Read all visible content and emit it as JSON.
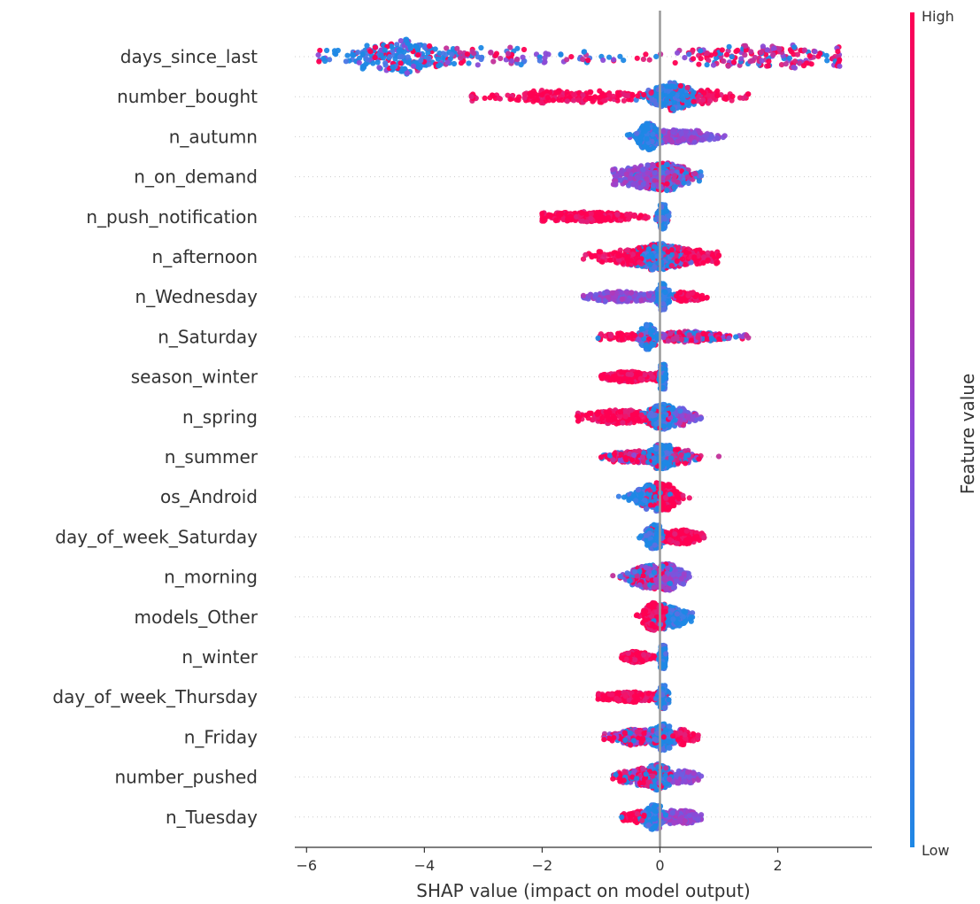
{
  "chart_data": {
    "type": "scatter",
    "subtype": "shap-beeswarm",
    "title": "",
    "xlabel": "SHAP value (impact on model output)",
    "ylabel": "",
    "xlim": [
      -6.2,
      3.6
    ],
    "xticks": [
      -6,
      -4,
      -2,
      0,
      2
    ],
    "xtick_labels": [
      "−6",
      "−4",
      "−2",
      "0",
      "2"
    ],
    "zero_line": true,
    "grid": false,
    "colorbar": {
      "label": "Feature value",
      "high_label": "High",
      "low_label": "Low",
      "low_color": "#1e88e5",
      "high_color": "#ff0052",
      "position": "right"
    },
    "features": [
      {
        "name": "days_since_last",
        "range": [
          -5.8,
          3.05
        ],
        "clusters": [
          {
            "c": -4.5,
            "s": 0.45,
            "w": 0.4,
            "color": "mix-blue"
          },
          {
            "c": -3.0,
            "s": 1.4,
            "w": 0.25,
            "color": "mixed"
          },
          {
            "c": 1.8,
            "s": 0.8,
            "w": 0.35,
            "color": "mix-red"
          }
        ],
        "max_spread": 20
      },
      {
        "name": "number_bought",
        "range": [
          -3.2,
          1.5
        ],
        "clusters": [
          {
            "c": -1.5,
            "s": 0.9,
            "w": 0.35,
            "color": "red"
          },
          {
            "c": 0.2,
            "s": 0.2,
            "w": 0.5,
            "color": "blue"
          },
          {
            "c": 0.8,
            "s": 0.3,
            "w": 0.15,
            "color": "red"
          }
        ],
        "max_spread": 16
      },
      {
        "name": "n_autumn",
        "range": [
          -0.55,
          1.1
        ],
        "clusters": [
          {
            "c": -0.2,
            "s": 0.1,
            "w": 0.6,
            "color": "blue"
          },
          {
            "c": 0.4,
            "s": 0.3,
            "w": 0.4,
            "color": "purple"
          }
        ],
        "max_spread": 15
      },
      {
        "name": "n_on_demand",
        "range": [
          -0.8,
          0.7
        ],
        "clusters": [
          {
            "c": -0.3,
            "s": 0.25,
            "w": 0.5,
            "color": "purple"
          },
          {
            "c": 0.15,
            "s": 0.2,
            "w": 0.5,
            "color": "mixed"
          }
        ],
        "max_spread": 16
      },
      {
        "name": "n_push_notification",
        "range": [
          -2.0,
          0.15
        ],
        "clusters": [
          {
            "c": -1.2,
            "s": 0.5,
            "w": 0.55,
            "color": "red"
          },
          {
            "c": 0.05,
            "s": 0.04,
            "w": 0.45,
            "color": "blue"
          }
        ],
        "max_spread": 14
      },
      {
        "name": "n_afternoon",
        "range": [
          -1.3,
          1.0
        ],
        "clusters": [
          {
            "c": -0.4,
            "s": 0.4,
            "w": 0.35,
            "color": "red"
          },
          {
            "c": 0.0,
            "s": 0.2,
            "w": 0.4,
            "color": "blue"
          },
          {
            "c": 0.5,
            "s": 0.3,
            "w": 0.25,
            "color": "red"
          }
        ],
        "max_spread": 15
      },
      {
        "name": "n_Wednesday",
        "range": [
          -1.3,
          0.8
        ],
        "clusters": [
          {
            "c": -0.6,
            "s": 0.35,
            "w": 0.4,
            "color": "purple"
          },
          {
            "c": 0.05,
            "s": 0.05,
            "w": 0.45,
            "color": "blue"
          },
          {
            "c": 0.5,
            "s": 0.15,
            "w": 0.15,
            "color": "red"
          }
        ],
        "max_spread": 15
      },
      {
        "name": "n_Saturday",
        "range": [
          -1.05,
          1.5
        ],
        "clusters": [
          {
            "c": -0.2,
            "s": 0.07,
            "w": 0.45,
            "color": "blue"
          },
          {
            "c": -0.6,
            "s": 0.25,
            "w": 0.15,
            "color": "red"
          },
          {
            "c": 0.5,
            "s": 0.4,
            "w": 0.4,
            "color": "mix-red"
          }
        ],
        "max_spread": 14
      },
      {
        "name": "season_winter",
        "range": [
          -1.0,
          0.1
        ],
        "clusters": [
          {
            "c": -0.5,
            "s": 0.25,
            "w": 0.5,
            "color": "red"
          },
          {
            "c": 0.05,
            "s": 0.03,
            "w": 0.5,
            "color": "blue"
          }
        ],
        "max_spread": 14
      },
      {
        "name": "n_spring",
        "range": [
          -1.4,
          0.7
        ],
        "clusters": [
          {
            "c": -0.6,
            "s": 0.4,
            "w": 0.4,
            "color": "red"
          },
          {
            "c": 0.05,
            "s": 0.12,
            "w": 0.45,
            "color": "blue"
          },
          {
            "c": 0.4,
            "s": 0.15,
            "w": 0.15,
            "color": "purple"
          }
        ],
        "max_spread": 14
      },
      {
        "name": "n_summer",
        "range": [
          -1.0,
          1.0
        ],
        "clusters": [
          {
            "c": -0.4,
            "s": 0.3,
            "w": 0.35,
            "color": "mix-red"
          },
          {
            "c": 0.05,
            "s": 0.1,
            "w": 0.5,
            "color": "blue"
          },
          {
            "c": 0.4,
            "s": 0.15,
            "w": 0.15,
            "color": "mix-red"
          }
        ],
        "max_spread": 14
      },
      {
        "name": "os_Android",
        "range": [
          -0.7,
          0.5
        ],
        "clusters": [
          {
            "c": -0.2,
            "s": 0.15,
            "w": 0.45,
            "color": "blue"
          },
          {
            "c": 0.05,
            "s": 0.12,
            "w": 0.55,
            "color": "red"
          }
        ],
        "max_spread": 16
      },
      {
        "name": "day_of_week_Saturday",
        "range": [
          -0.35,
          0.75
        ],
        "clusters": [
          {
            "c": -0.1,
            "s": 0.07,
            "w": 0.55,
            "color": "blue"
          },
          {
            "c": 0.35,
            "s": 0.2,
            "w": 0.45,
            "color": "red"
          }
        ],
        "max_spread": 14
      },
      {
        "name": "n_morning",
        "range": [
          -0.8,
          0.5
        ],
        "clusters": [
          {
            "c": -0.2,
            "s": 0.2,
            "w": 0.5,
            "color": "mixed"
          },
          {
            "c": 0.15,
            "s": 0.15,
            "w": 0.5,
            "color": "purple"
          }
        ],
        "max_spread": 15
      },
      {
        "name": "models_Other",
        "range": [
          -0.4,
          0.55
        ],
        "clusters": [
          {
            "c": -0.1,
            "s": 0.1,
            "w": 0.55,
            "color": "red"
          },
          {
            "c": 0.25,
            "s": 0.15,
            "w": 0.45,
            "color": "blue"
          }
        ],
        "max_spread": 16
      },
      {
        "name": "n_winter",
        "range": [
          -0.65,
          0.1
        ],
        "clusters": [
          {
            "c": -0.4,
            "s": 0.12,
            "w": 0.4,
            "color": "red"
          },
          {
            "c": 0.05,
            "s": 0.03,
            "w": 0.6,
            "color": "blue"
          }
        ],
        "max_spread": 13
      },
      {
        "name": "day_of_week_Thursday",
        "range": [
          -1.05,
          0.15
        ],
        "clusters": [
          {
            "c": -0.5,
            "s": 0.3,
            "w": 0.5,
            "color": "red"
          },
          {
            "c": 0.05,
            "s": 0.04,
            "w": 0.5,
            "color": "blue"
          }
        ],
        "max_spread": 13
      },
      {
        "name": "n_Friday",
        "range": [
          -0.95,
          0.65
        ],
        "clusters": [
          {
            "c": -0.4,
            "s": 0.25,
            "w": 0.4,
            "color": "mix-red"
          },
          {
            "c": 0.05,
            "s": 0.08,
            "w": 0.45,
            "color": "blue"
          },
          {
            "c": 0.4,
            "s": 0.12,
            "w": 0.15,
            "color": "red"
          }
        ],
        "max_spread": 15
      },
      {
        "name": "number_pushed",
        "range": [
          -0.8,
          0.7
        ],
        "clusters": [
          {
            "c": -0.3,
            "s": 0.2,
            "w": 0.4,
            "color": "mix-red"
          },
          {
            "c": 0.0,
            "s": 0.1,
            "w": 0.4,
            "color": "blue"
          },
          {
            "c": 0.4,
            "s": 0.15,
            "w": 0.2,
            "color": "purple"
          }
        ],
        "max_spread": 15
      },
      {
        "name": "n_Tuesday",
        "range": [
          -0.65,
          0.7
        ],
        "clusters": [
          {
            "c": -0.1,
            "s": 0.08,
            "w": 0.5,
            "color": "blue"
          },
          {
            "c": -0.45,
            "s": 0.12,
            "w": 0.15,
            "color": "red"
          },
          {
            "c": 0.35,
            "s": 0.2,
            "w": 0.35,
            "color": "purple"
          }
        ],
        "max_spread": 14
      }
    ]
  }
}
